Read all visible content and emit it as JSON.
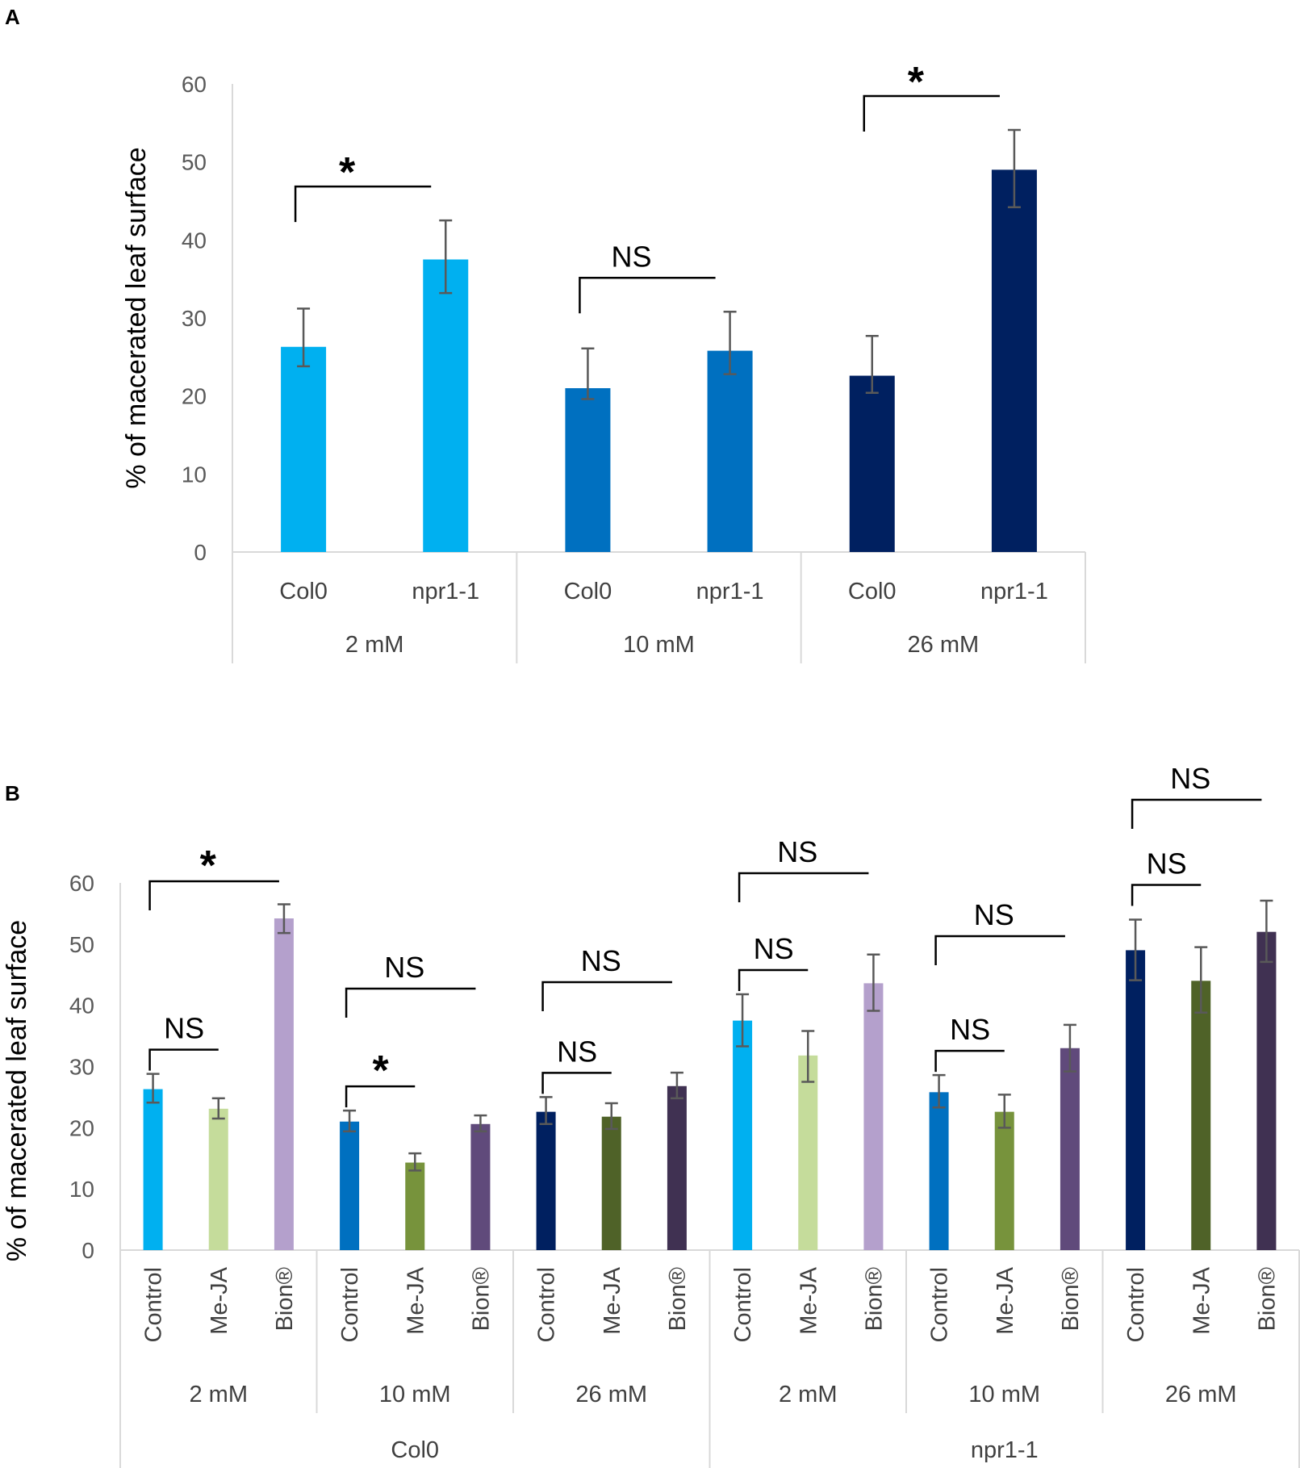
{
  "panels": {
    "a_label": "A",
    "b_label": "B"
  },
  "chart_data": [
    {
      "panel": "A",
      "type": "bar",
      "ylabel": "% of macerated leaf surface",
      "ylim": [
        0,
        60
      ],
      "yticks": [
        0,
        10,
        20,
        30,
        40,
        50,
        60
      ],
      "groups": [
        "2 mM",
        "10 mM",
        "26 mM"
      ],
      "bars": [
        {
          "group": "2 mM",
          "label": "Col0",
          "value": 26.3,
          "err_low": 23.8,
          "err_high": 31.2,
          "color": "#00B0F0"
        },
        {
          "group": "2 mM",
          "label": "npr1-1",
          "value": 37.5,
          "err_low": 33.2,
          "err_high": 42.5,
          "color": "#00B0F0"
        },
        {
          "group": "10 mM",
          "label": "Col0",
          "value": 21.0,
          "err_low": 19.6,
          "err_high": 26.1,
          "color": "#0070C0"
        },
        {
          "group": "10 mM",
          "label": "npr1-1",
          "value": 25.8,
          "err_low": 22.8,
          "err_high": 30.8,
          "color": "#0070C0"
        },
        {
          "group": "26 mM",
          "label": "Col0",
          "value": 22.6,
          "err_low": 20.4,
          "err_high": 27.7,
          "color": "#002060"
        },
        {
          "group": "26 mM",
          "label": "npr1-1",
          "value": 49.0,
          "err_low": 44.2,
          "err_high": 54.1,
          "color": "#002060"
        }
      ],
      "annotations": [
        {
          "text": "*",
          "from": 0,
          "to": 1
        },
        {
          "text": "NS",
          "from": 2,
          "to": 3
        },
        {
          "text": "*",
          "from": 4,
          "to": 5
        }
      ]
    },
    {
      "panel": "B",
      "type": "bar",
      "ylabel": "% of macerated leaf surface",
      "ylim": [
        0,
        60
      ],
      "yticks": [
        0,
        10,
        20,
        30,
        40,
        50,
        60
      ],
      "genotypes": [
        "Col0",
        "npr1-1"
      ],
      "groups": [
        "2 mM",
        "10 mM",
        "26 mM",
        "2 mM",
        "10 mM",
        "26 mM"
      ],
      "bars": [
        {
          "label": "Control",
          "value": 26.3,
          "err_low": 24.1,
          "err_high": 28.8,
          "color": "#00B0F0"
        },
        {
          "label": "Me-JA",
          "value": 23.1,
          "err_low": 21.5,
          "err_high": 24.8,
          "color": "#C5DC9B"
        },
        {
          "label": "Bion®",
          "value": 54.2,
          "err_low": 51.8,
          "err_high": 56.5,
          "color": "#B4A0CC"
        },
        {
          "label": "Control",
          "value": 21.0,
          "err_low": 19.4,
          "err_high": 22.8,
          "color": "#0070C0"
        },
        {
          "label": "Me-JA",
          "value": 14.3,
          "err_low": 13.0,
          "err_high": 15.8,
          "color": "#77933C"
        },
        {
          "label": "Bion®",
          "value": 20.6,
          "err_low": 19.4,
          "err_high": 22.0,
          "color": "#604A7B"
        },
        {
          "label": "Control",
          "value": 22.6,
          "err_low": 20.6,
          "err_high": 25.0,
          "color": "#002060"
        },
        {
          "label": "Me-JA",
          "value": 21.8,
          "err_low": 19.8,
          "err_high": 24.0,
          "color": "#4F6228"
        },
        {
          "label": "Bion®",
          "value": 26.8,
          "err_low": 24.8,
          "err_high": 29.0,
          "color": "#403152"
        },
        {
          "label": "Control",
          "value": 37.5,
          "err_low": 33.3,
          "err_high": 41.8,
          "color": "#00B0F0"
        },
        {
          "label": "Me-JA",
          "value": 31.8,
          "err_low": 27.5,
          "err_high": 35.8,
          "color": "#C5DC9B"
        },
        {
          "label": "Bion®",
          "value": 43.6,
          "err_low": 39.1,
          "err_high": 48.3,
          "color": "#B4A0CC"
        },
        {
          "label": "Control",
          "value": 25.8,
          "err_low": 23.3,
          "err_high": 28.6,
          "color": "#0070C0"
        },
        {
          "label": "Me-JA",
          "value": 22.6,
          "err_low": 20.0,
          "err_high": 25.4,
          "color": "#77933C"
        },
        {
          "label": "Bion®",
          "value": 33.0,
          "err_low": 29.2,
          "err_high": 36.8,
          "color": "#604A7B"
        },
        {
          "label": "Control",
          "value": 49.0,
          "err_low": 44.1,
          "err_high": 54.0,
          "color": "#002060"
        },
        {
          "label": "Me-JA",
          "value": 44.0,
          "err_low": 38.8,
          "err_high": 49.5,
          "color": "#4F6228"
        },
        {
          "label": "Bion®",
          "value": 52.0,
          "err_low": 47.1,
          "err_high": 57.1,
          "color": "#403152"
        }
      ],
      "annotations": [
        {
          "text": "*",
          "from": 0,
          "to": 2,
          "level": "top"
        },
        {
          "text": "NS",
          "from": 0,
          "to": 1,
          "level": "low"
        },
        {
          "text": "NS",
          "from": 3,
          "to": 5,
          "level": "top"
        },
        {
          "text": "*",
          "from": 3,
          "to": 4,
          "level": "low"
        },
        {
          "text": "NS",
          "from": 6,
          "to": 8,
          "level": "top"
        },
        {
          "text": "NS",
          "from": 6,
          "to": 7,
          "level": "low"
        },
        {
          "text": "NS",
          "from": 9,
          "to": 11,
          "level": "top"
        },
        {
          "text": "NS",
          "from": 9,
          "to": 10,
          "level": "low"
        },
        {
          "text": "NS",
          "from": 12,
          "to": 14,
          "level": "top"
        },
        {
          "text": "NS",
          "from": 12,
          "to": 13,
          "level": "low"
        },
        {
          "text": "NS",
          "from": 15,
          "to": 17,
          "level": "top"
        },
        {
          "text": "NS",
          "from": 15,
          "to": 16,
          "level": "low"
        }
      ]
    }
  ]
}
